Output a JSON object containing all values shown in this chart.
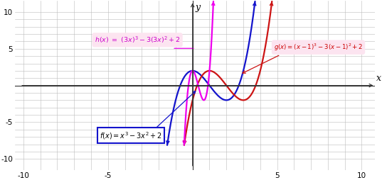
{
  "xlim": [
    -10.5,
    10.8
  ],
  "ylim": [
    -11.5,
    11.5
  ],
  "xticks": [
    -10,
    -5,
    5,
    10
  ],
  "yticks": [
    -10,
    -5,
    5,
    10
  ],
  "xlabel": "x",
  "ylabel": "y",
  "f_color": "#1414cc",
  "g_color": "#cc1414",
  "h_color": "#ee00ee",
  "background": "#ffffff",
  "grid_color": "#bbbbbb",
  "axis_color": "#333333"
}
